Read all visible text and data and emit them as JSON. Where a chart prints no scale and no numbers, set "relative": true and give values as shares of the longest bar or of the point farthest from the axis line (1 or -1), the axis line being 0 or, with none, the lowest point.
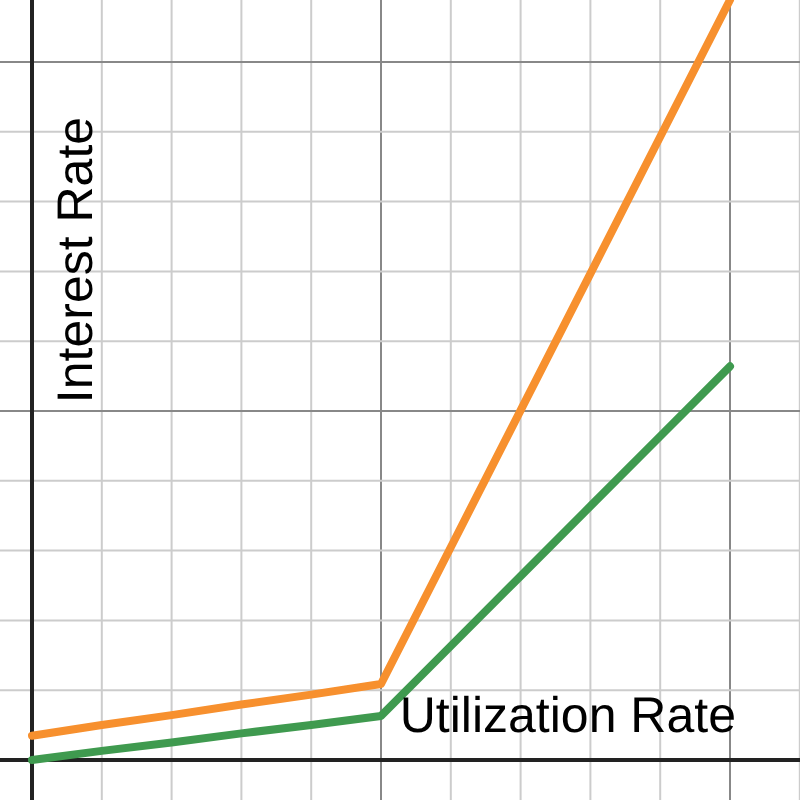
{
  "chart_data": {
    "type": "line",
    "relative": true,
    "xlabel": "Utilization Rate",
    "ylabel": "Interest Rate",
    "grid": true,
    "categories": [
      null,
      null,
      null,
      null,
      null,
      null,
      null,
      null,
      null,
      null,
      null,
      null
    ],
    "series": [
      {
        "color": "#f7902e",
        "values": [
          0.032,
          0.046,
          0.059,
          0.073,
          0.086,
          0.1,
          0.28,
          0.46,
          0.64,
          0.82,
          1.0,
          null
        ]
      },
      {
        "color": "#3f9a4f",
        "values": [
          0,
          0.012,
          0.023,
          0.035,
          0.046,
          0.058,
          0.15,
          0.242,
          0.334,
          0.426,
          0.518,
          null
        ]
      }
    ]
  }
}
